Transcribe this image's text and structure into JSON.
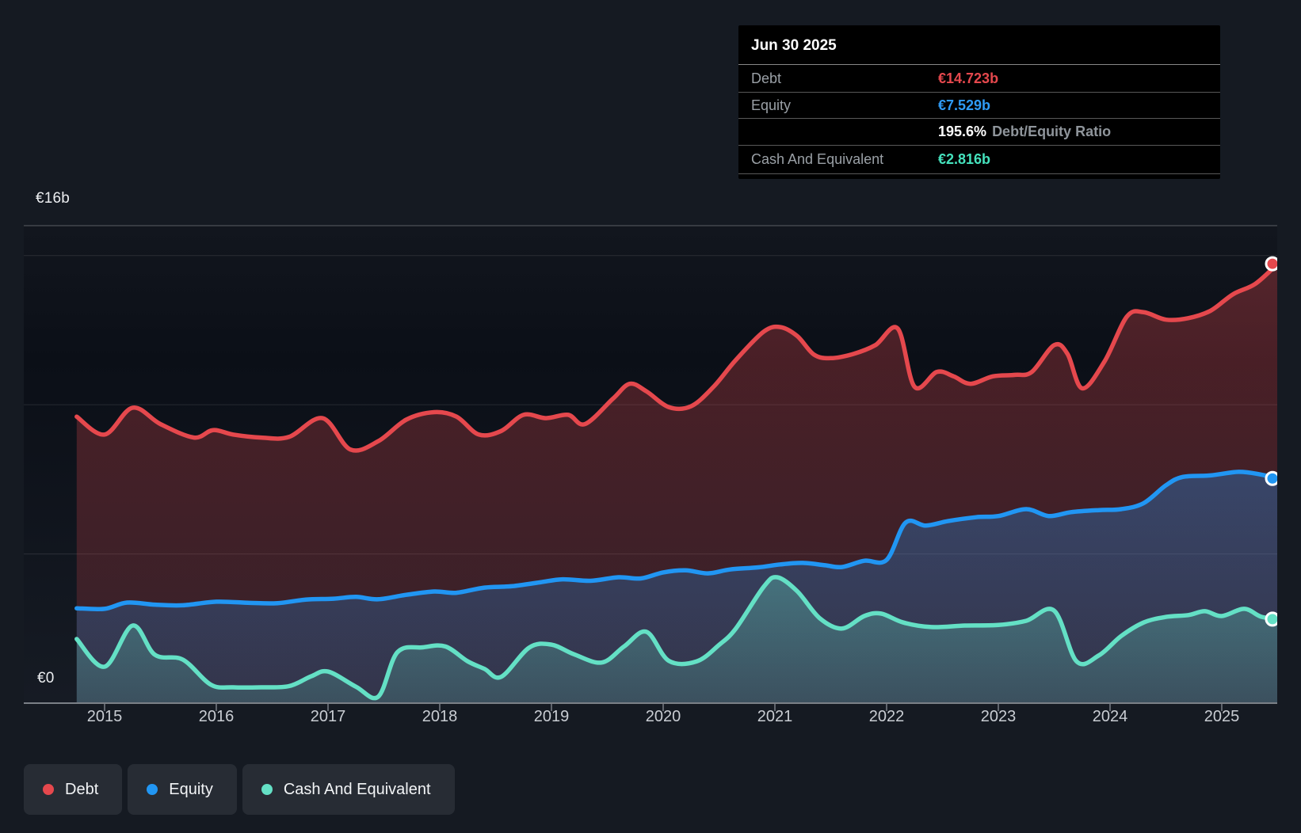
{
  "tooltip": {
    "date": "Jun 30 2025",
    "debt_label": "Debt",
    "debt_value": "€14.723b",
    "equity_label": "Equity",
    "equity_value": "€7.529b",
    "ratio_value": "195.6%",
    "ratio_label": "Debt/Equity Ratio",
    "cash_label": "Cash And Equivalent",
    "cash_value": "€2.816b"
  },
  "legend": {
    "items": [
      {
        "label": "Debt",
        "color": "#e5484d"
      },
      {
        "label": "Equity",
        "color": "#2196f3"
      },
      {
        "label": "Cash And Equivalent",
        "color": "#64e0c5"
      }
    ]
  },
  "chart_data": {
    "type": "area",
    "unit": "€ billions",
    "x_range": [
      2014.75,
      2025.5
    ],
    "ylim": [
      0,
      16
    ],
    "y_labels": {
      "top": "€16b",
      "zero": "€0"
    },
    "gridline_values": [
      16,
      15,
      10,
      5
    ],
    "x_tick_years": [
      2015,
      2016,
      2017,
      2018,
      2019,
      2020,
      2021,
      2022,
      2023,
      2024,
      2025
    ],
    "legend_position": "bottom",
    "series": [
      {
        "name": "Debt",
        "color": "#e5484d",
        "end_value": 14.723,
        "end_value_label": "€14.723b",
        "points": [
          [
            2014.75,
            9.6
          ],
          [
            2015.0,
            9.0
          ],
          [
            2015.25,
            9.9
          ],
          [
            2015.5,
            9.35
          ],
          [
            2015.8,
            8.9
          ],
          [
            2015.97,
            9.15
          ],
          [
            2016.15,
            9.0
          ],
          [
            2016.4,
            8.9
          ],
          [
            2016.65,
            8.92
          ],
          [
            2016.95,
            9.55
          ],
          [
            2017.2,
            8.5
          ],
          [
            2017.45,
            8.78
          ],
          [
            2017.7,
            9.5
          ],
          [
            2017.95,
            9.75
          ],
          [
            2018.15,
            9.6
          ],
          [
            2018.35,
            9.0
          ],
          [
            2018.55,
            9.12
          ],
          [
            2018.75,
            9.66
          ],
          [
            2018.95,
            9.55
          ],
          [
            2019.15,
            9.66
          ],
          [
            2019.3,
            9.35
          ],
          [
            2019.55,
            10.2
          ],
          [
            2019.7,
            10.7
          ],
          [
            2019.85,
            10.45
          ],
          [
            2020.05,
            9.92
          ],
          [
            2020.25,
            9.95
          ],
          [
            2020.45,
            10.6
          ],
          [
            2020.65,
            11.5
          ],
          [
            2020.9,
            12.45
          ],
          [
            2021.05,
            12.6
          ],
          [
            2021.2,
            12.3
          ],
          [
            2021.35,
            11.68
          ],
          [
            2021.5,
            11.56
          ],
          [
            2021.7,
            11.7
          ],
          [
            2021.9,
            12.0
          ],
          [
            2022.1,
            12.55
          ],
          [
            2022.25,
            10.6
          ],
          [
            2022.45,
            11.1
          ],
          [
            2022.6,
            10.95
          ],
          [
            2022.75,
            10.7
          ],
          [
            2022.95,
            10.95
          ],
          [
            2023.15,
            11.0
          ],
          [
            2023.3,
            11.1
          ],
          [
            2023.5,
            12.0
          ],
          [
            2023.62,
            11.7
          ],
          [
            2023.75,
            10.55
          ],
          [
            2023.95,
            11.45
          ],
          [
            2024.15,
            12.95
          ],
          [
            2024.3,
            13.1
          ],
          [
            2024.5,
            12.85
          ],
          [
            2024.7,
            12.9
          ],
          [
            2024.9,
            13.15
          ],
          [
            2025.1,
            13.7
          ],
          [
            2025.3,
            14.05
          ],
          [
            2025.5,
            14.723
          ]
        ]
      },
      {
        "name": "Equity",
        "color": "#2196f3",
        "end_value": 7.529,
        "end_value_label": "€7.529b",
        "points": [
          [
            2014.75,
            3.18
          ],
          [
            2015.0,
            3.16
          ],
          [
            2015.2,
            3.37
          ],
          [
            2015.45,
            3.3
          ],
          [
            2015.7,
            3.28
          ],
          [
            2016.0,
            3.4
          ],
          [
            2016.3,
            3.36
          ],
          [
            2016.55,
            3.35
          ],
          [
            2016.8,
            3.47
          ],
          [
            2017.05,
            3.5
          ],
          [
            2017.25,
            3.56
          ],
          [
            2017.45,
            3.48
          ],
          [
            2017.7,
            3.63
          ],
          [
            2017.95,
            3.74
          ],
          [
            2018.15,
            3.7
          ],
          [
            2018.4,
            3.87
          ],
          [
            2018.65,
            3.92
          ],
          [
            2018.9,
            4.05
          ],
          [
            2019.1,
            4.15
          ],
          [
            2019.35,
            4.1
          ],
          [
            2019.6,
            4.22
          ],
          [
            2019.8,
            4.18
          ],
          [
            2020.0,
            4.38
          ],
          [
            2020.2,
            4.45
          ],
          [
            2020.4,
            4.35
          ],
          [
            2020.6,
            4.48
          ],
          [
            2020.85,
            4.55
          ],
          [
            2021.05,
            4.65
          ],
          [
            2021.25,
            4.7
          ],
          [
            2021.45,
            4.62
          ],
          [
            2021.6,
            4.56
          ],
          [
            2021.8,
            4.77
          ],
          [
            2022.0,
            4.8
          ],
          [
            2022.17,
            6.05
          ],
          [
            2022.35,
            5.95
          ],
          [
            2022.55,
            6.1
          ],
          [
            2022.8,
            6.23
          ],
          [
            2023.0,
            6.27
          ],
          [
            2023.25,
            6.5
          ],
          [
            2023.45,
            6.27
          ],
          [
            2023.65,
            6.4
          ],
          [
            2023.9,
            6.47
          ],
          [
            2024.1,
            6.5
          ],
          [
            2024.3,
            6.7
          ],
          [
            2024.5,
            7.3
          ],
          [
            2024.65,
            7.58
          ],
          [
            2024.9,
            7.63
          ],
          [
            2025.15,
            7.75
          ],
          [
            2025.35,
            7.66
          ],
          [
            2025.5,
            7.529
          ]
        ]
      },
      {
        "name": "Cash And Equivalent",
        "color": "#64e0c5",
        "end_value": 2.816,
        "end_value_label": "€2.816b",
        "points": [
          [
            2014.75,
            2.15
          ],
          [
            2015.0,
            1.22
          ],
          [
            2015.25,
            2.6
          ],
          [
            2015.45,
            1.62
          ],
          [
            2015.7,
            1.46
          ],
          [
            2015.95,
            0.62
          ],
          [
            2016.15,
            0.53
          ],
          [
            2016.4,
            0.53
          ],
          [
            2016.65,
            0.57
          ],
          [
            2016.85,
            0.9
          ],
          [
            2017.0,
            1.06
          ],
          [
            2017.25,
            0.55
          ],
          [
            2017.45,
            0.22
          ],
          [
            2017.62,
            1.7
          ],
          [
            2017.85,
            1.87
          ],
          [
            2018.05,
            1.9
          ],
          [
            2018.25,
            1.4
          ],
          [
            2018.4,
            1.15
          ],
          [
            2018.55,
            0.88
          ],
          [
            2018.8,
            1.86
          ],
          [
            2019.0,
            1.96
          ],
          [
            2019.2,
            1.64
          ],
          [
            2019.45,
            1.36
          ],
          [
            2019.65,
            1.9
          ],
          [
            2019.85,
            2.39
          ],
          [
            2020.05,
            1.42
          ],
          [
            2020.3,
            1.4
          ],
          [
            2020.5,
            1.95
          ],
          [
            2020.65,
            2.5
          ],
          [
            2020.9,
            3.9
          ],
          [
            2021.02,
            4.22
          ],
          [
            2021.2,
            3.75
          ],
          [
            2021.4,
            2.85
          ],
          [
            2021.6,
            2.5
          ],
          [
            2021.8,
            2.92
          ],
          [
            2021.95,
            3.0
          ],
          [
            2022.15,
            2.7
          ],
          [
            2022.4,
            2.55
          ],
          [
            2022.7,
            2.6
          ],
          [
            2023.0,
            2.62
          ],
          [
            2023.25,
            2.76
          ],
          [
            2023.5,
            3.1
          ],
          [
            2023.7,
            1.4
          ],
          [
            2023.9,
            1.6
          ],
          [
            2024.1,
            2.25
          ],
          [
            2024.3,
            2.7
          ],
          [
            2024.5,
            2.89
          ],
          [
            2024.7,
            2.95
          ],
          [
            2024.85,
            3.08
          ],
          [
            2025.0,
            2.92
          ],
          [
            2025.2,
            3.16
          ],
          [
            2025.35,
            2.9
          ],
          [
            2025.5,
            2.816
          ]
        ]
      }
    ]
  }
}
